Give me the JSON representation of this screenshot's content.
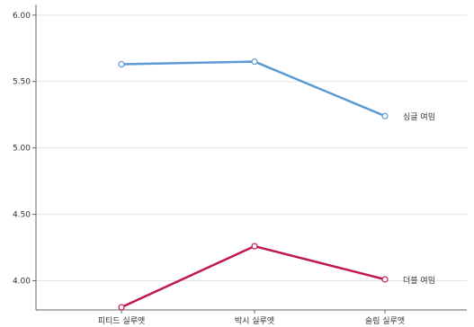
{
  "chart_data": {
    "type": "line",
    "title": "",
    "xlabel": "",
    "ylabel": "",
    "categories": [
      "피티드 실루엣",
      "박시 실루엣",
      "슬림 실루엣"
    ],
    "ylim": [
      3.78,
      6.08
    ],
    "yticks": [
      "6.00",
      "5.50",
      "5.00",
      "4.50",
      "4.00"
    ],
    "grid": "horizontal",
    "legend": "inline labels at right end of each line",
    "series": [
      {
        "name": "싱글 여밈",
        "color": "#5b9bd5",
        "values": [
          5.63,
          5.65,
          5.24
        ]
      },
      {
        "name": "더블 여밈",
        "color": "#c0184a",
        "values": [
          3.8,
          4.26,
          4.01
        ]
      }
    ]
  }
}
